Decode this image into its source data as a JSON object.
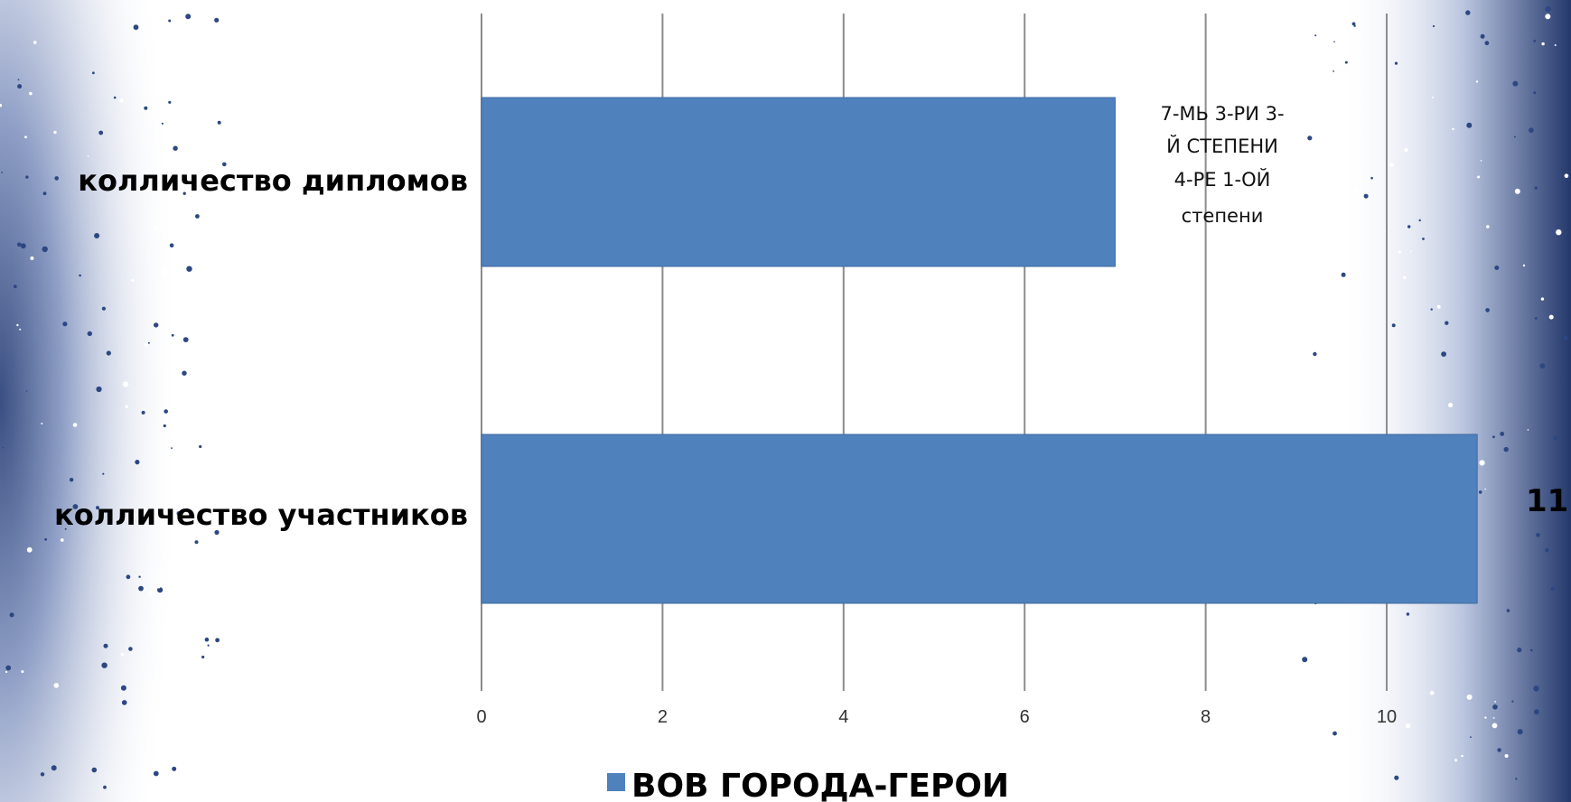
{
  "chart_data": {
    "type": "bar",
    "orientation": "horizontal",
    "categories": [
      "колличество дипломов",
      "колличество участников"
    ],
    "series": [
      {
        "name": "ВОВ ГОРОДА-ГЕРОИ",
        "values": [
          7,
          11
        ]
      }
    ],
    "xlim": [
      0,
      11
    ],
    "xticks": [
      0,
      2,
      4,
      6,
      8,
      10
    ],
    "grid": true,
    "legend_position": "bottom",
    "bar_color": "#4f81bd",
    "annotation_lines": [
      "7-МЬ  3-РИ 3-",
      "Й СТЕПЕНИ",
      "4-РЕ  1-ОЙ",
      "степени"
    ],
    "value_label": "11"
  }
}
